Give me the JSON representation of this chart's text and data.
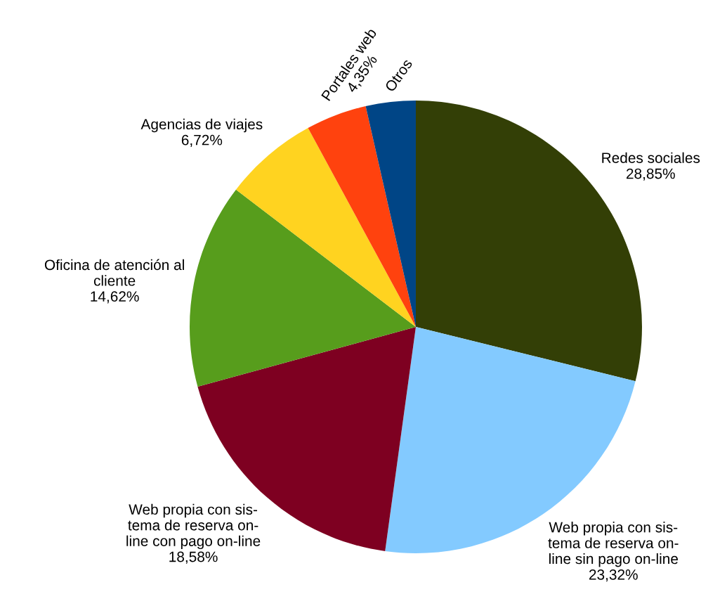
{
  "chart_data": {
    "type": "pie",
    "categories": [
      "Redes sociales",
      "Web propia con sis-\ntema de reserva on-\nline sin pago on-line",
      "Web propia con sis-\ntema de reserva on-\nline con pago on-line",
      "Oficina de atención al\ncliente",
      "Agencias de viajes",
      "Portales web",
      "Otros"
    ],
    "values": [
      28.85,
      23.32,
      18.58,
      14.62,
      6.72,
      4.35,
      3.56
    ],
    "value_labels": [
      "28,85%",
      "23,32%",
      "18,58%",
      "14,62%",
      "6,72%",
      "4,35%",
      null
    ],
    "colors": [
      "#333f06",
      "#83caff",
      "#7e0021",
      "#579d1c",
      "#ffd320",
      "#ff420e",
      "#004586"
    ]
  }
}
